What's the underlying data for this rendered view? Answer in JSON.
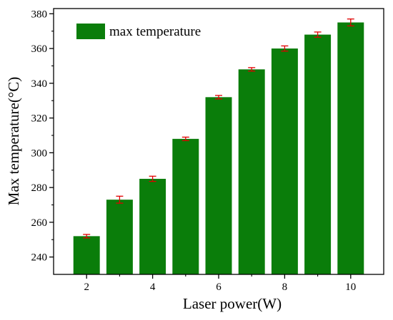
{
  "chart_data": {
    "type": "bar",
    "title": "",
    "xlabel": "Laser power(W)",
    "ylabel": "Max temperature(°C)",
    "x": [
      2,
      3,
      4,
      5,
      6,
      7,
      8,
      9,
      10
    ],
    "xticks": [
      "2",
      "4",
      "6",
      "8",
      "10"
    ],
    "xlim": [
      1,
      11
    ],
    "yticks": [
      "240",
      "260",
      "280",
      "300",
      "320",
      "340",
      "360",
      "380"
    ],
    "ylim": [
      230,
      383
    ],
    "series": [
      {
        "name": "max temperature",
        "values": [
          252,
          273,
          285,
          308,
          332,
          348,
          360,
          368,
          375
        ],
        "errors": [
          1,
          2,
          1.5,
          1,
          1,
          1,
          1.5,
          1.5,
          2
        ]
      }
    ],
    "bar_color": "#0a7d0a",
    "error_color": "#e00000",
    "legend_position": "top-left",
    "grid": false
  }
}
